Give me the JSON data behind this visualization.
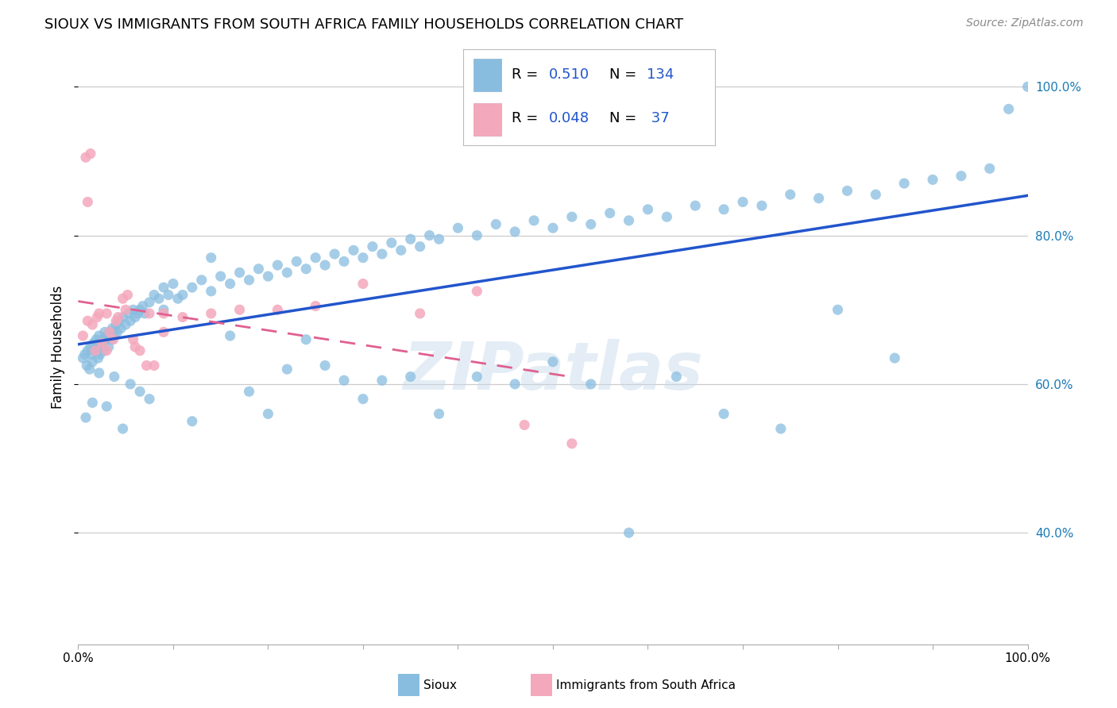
{
  "title": "SIOUX VS IMMIGRANTS FROM SOUTH AFRICA FAMILY HOUSEHOLDS CORRELATION CHART",
  "source": "Source: ZipAtlas.com",
  "ylabel": "Family Households",
  "blue_color": "#89bde0",
  "pink_color": "#f4a8bc",
  "blue_line_color": "#2255cc",
  "pink_line_color": "#e06090",
  "watermark": "ZIPatlas",
  "sioux_x": [
    0.005,
    0.007,
    0.009,
    0.01,
    0.012,
    0.013,
    0.014,
    0.015,
    0.016,
    0.018,
    0.019,
    0.02,
    0.021,
    0.022,
    0.023,
    0.025,
    0.026,
    0.027,
    0.028,
    0.03,
    0.031,
    0.032,
    0.033,
    0.035,
    0.036,
    0.038,
    0.04,
    0.041,
    0.043,
    0.045,
    0.047,
    0.05,
    0.053,
    0.055,
    0.058,
    0.06,
    0.063,
    0.065,
    0.068,
    0.07,
    0.075,
    0.08,
    0.085,
    0.09,
    0.095,
    0.1,
    0.11,
    0.12,
    0.13,
    0.14,
    0.15,
    0.16,
    0.17,
    0.18,
    0.19,
    0.2,
    0.21,
    0.22,
    0.23,
    0.24,
    0.25,
    0.26,
    0.27,
    0.28,
    0.29,
    0.3,
    0.31,
    0.32,
    0.33,
    0.34,
    0.35,
    0.36,
    0.37,
    0.38,
    0.4,
    0.42,
    0.44,
    0.46,
    0.48,
    0.5,
    0.52,
    0.54,
    0.56,
    0.58,
    0.6,
    0.62,
    0.65,
    0.68,
    0.7,
    0.72,
    0.75,
    0.78,
    0.81,
    0.84,
    0.87,
    0.9,
    0.93,
    0.96,
    0.98,
    1.0,
    0.008,
    0.015,
    0.022,
    0.03,
    0.038,
    0.047,
    0.055,
    0.065,
    0.075,
    0.09,
    0.105,
    0.12,
    0.14,
    0.16,
    0.18,
    0.2,
    0.22,
    0.24,
    0.26,
    0.28,
    0.3,
    0.32,
    0.35,
    0.38,
    0.42,
    0.46,
    0.5,
    0.54,
    0.58,
    0.63,
    0.68,
    0.74,
    0.8,
    0.86
  ],
  "sioux_y": [
    0.635,
    0.64,
    0.625,
    0.645,
    0.62,
    0.65,
    0.64,
    0.63,
    0.655,
    0.645,
    0.66,
    0.65,
    0.635,
    0.665,
    0.64,
    0.655,
    0.66,
    0.645,
    0.67,
    0.66,
    0.665,
    0.65,
    0.67,
    0.66,
    0.675,
    0.665,
    0.68,
    0.67,
    0.685,
    0.675,
    0.69,
    0.68,
    0.695,
    0.685,
    0.7,
    0.69,
    0.695,
    0.7,
    0.705,
    0.695,
    0.71,
    0.72,
    0.715,
    0.73,
    0.72,
    0.735,
    0.72,
    0.73,
    0.74,
    0.725,
    0.745,
    0.735,
    0.75,
    0.74,
    0.755,
    0.745,
    0.76,
    0.75,
    0.765,
    0.755,
    0.77,
    0.76,
    0.775,
    0.765,
    0.78,
    0.77,
    0.785,
    0.775,
    0.79,
    0.78,
    0.795,
    0.785,
    0.8,
    0.795,
    0.81,
    0.8,
    0.815,
    0.805,
    0.82,
    0.81,
    0.825,
    0.815,
    0.83,
    0.82,
    0.835,
    0.825,
    0.84,
    0.835,
    0.845,
    0.84,
    0.855,
    0.85,
    0.86,
    0.855,
    0.87,
    0.875,
    0.88,
    0.89,
    0.97,
    1.0,
    0.555,
    0.575,
    0.615,
    0.57,
    0.61,
    0.54,
    0.6,
    0.59,
    0.58,
    0.7,
    0.715,
    0.55,
    0.77,
    0.665,
    0.59,
    0.56,
    0.62,
    0.66,
    0.625,
    0.605,
    0.58,
    0.605,
    0.61,
    0.56,
    0.61,
    0.6,
    0.63,
    0.6,
    0.4,
    0.61,
    0.56,
    0.54,
    0.7,
    0.635
  ],
  "sa_x": [
    0.005,
    0.01,
    0.015,
    0.018,
    0.022,
    0.025,
    0.03,
    0.033,
    0.037,
    0.042,
    0.047,
    0.052,
    0.058,
    0.065,
    0.072,
    0.08,
    0.09,
    0.01,
    0.02,
    0.03,
    0.04,
    0.05,
    0.06,
    0.075,
    0.09,
    0.11,
    0.14,
    0.17,
    0.21,
    0.25,
    0.3,
    0.36,
    0.42,
    0.47,
    0.52,
    0.008,
    0.013
  ],
  "sa_y": [
    0.665,
    0.845,
    0.68,
    0.645,
    0.695,
    0.655,
    0.645,
    0.67,
    0.66,
    0.69,
    0.715,
    0.72,
    0.66,
    0.645,
    0.625,
    0.625,
    0.67,
    0.685,
    0.69,
    0.695,
    0.685,
    0.7,
    0.65,
    0.695,
    0.695,
    0.69,
    0.695,
    0.7,
    0.7,
    0.705,
    0.735,
    0.695,
    0.725,
    0.545,
    0.52,
    0.905,
    0.91
  ],
  "xlim": [
    0.0,
    1.0
  ],
  "ylim": [
    0.25,
    1.05
  ],
  "xticks": [
    0.0,
    0.1,
    0.2,
    0.3,
    0.4,
    0.5,
    0.6,
    0.7,
    0.8,
    0.9,
    1.0
  ],
  "yticks_right": [
    0.4,
    0.6,
    0.8,
    1.0
  ],
  "ytick_labels_right": [
    "40.0%",
    "60.0%",
    "80.0%",
    "100.0%"
  ],
  "grid_yticks": [
    0.4,
    0.6,
    0.8,
    1.0
  ],
  "legend_r1_label": "R = ",
  "legend_r1_val": "0.510",
  "legend_n1_label": "N = ",
  "legend_n1_val": "134",
  "legend_r2_label": "R = ",
  "legend_r2_val": "0.048",
  "legend_n2_label": "N = ",
  "legend_n2_val": " 37",
  "legend_label1": "Sioux",
  "legend_label2": "Immigrants from South Africa",
  "title_fontsize": 13,
  "source_fontsize": 10,
  "tick_fontsize": 11,
  "legend_fontsize": 13,
  "ylabel_fontsize": 12
}
